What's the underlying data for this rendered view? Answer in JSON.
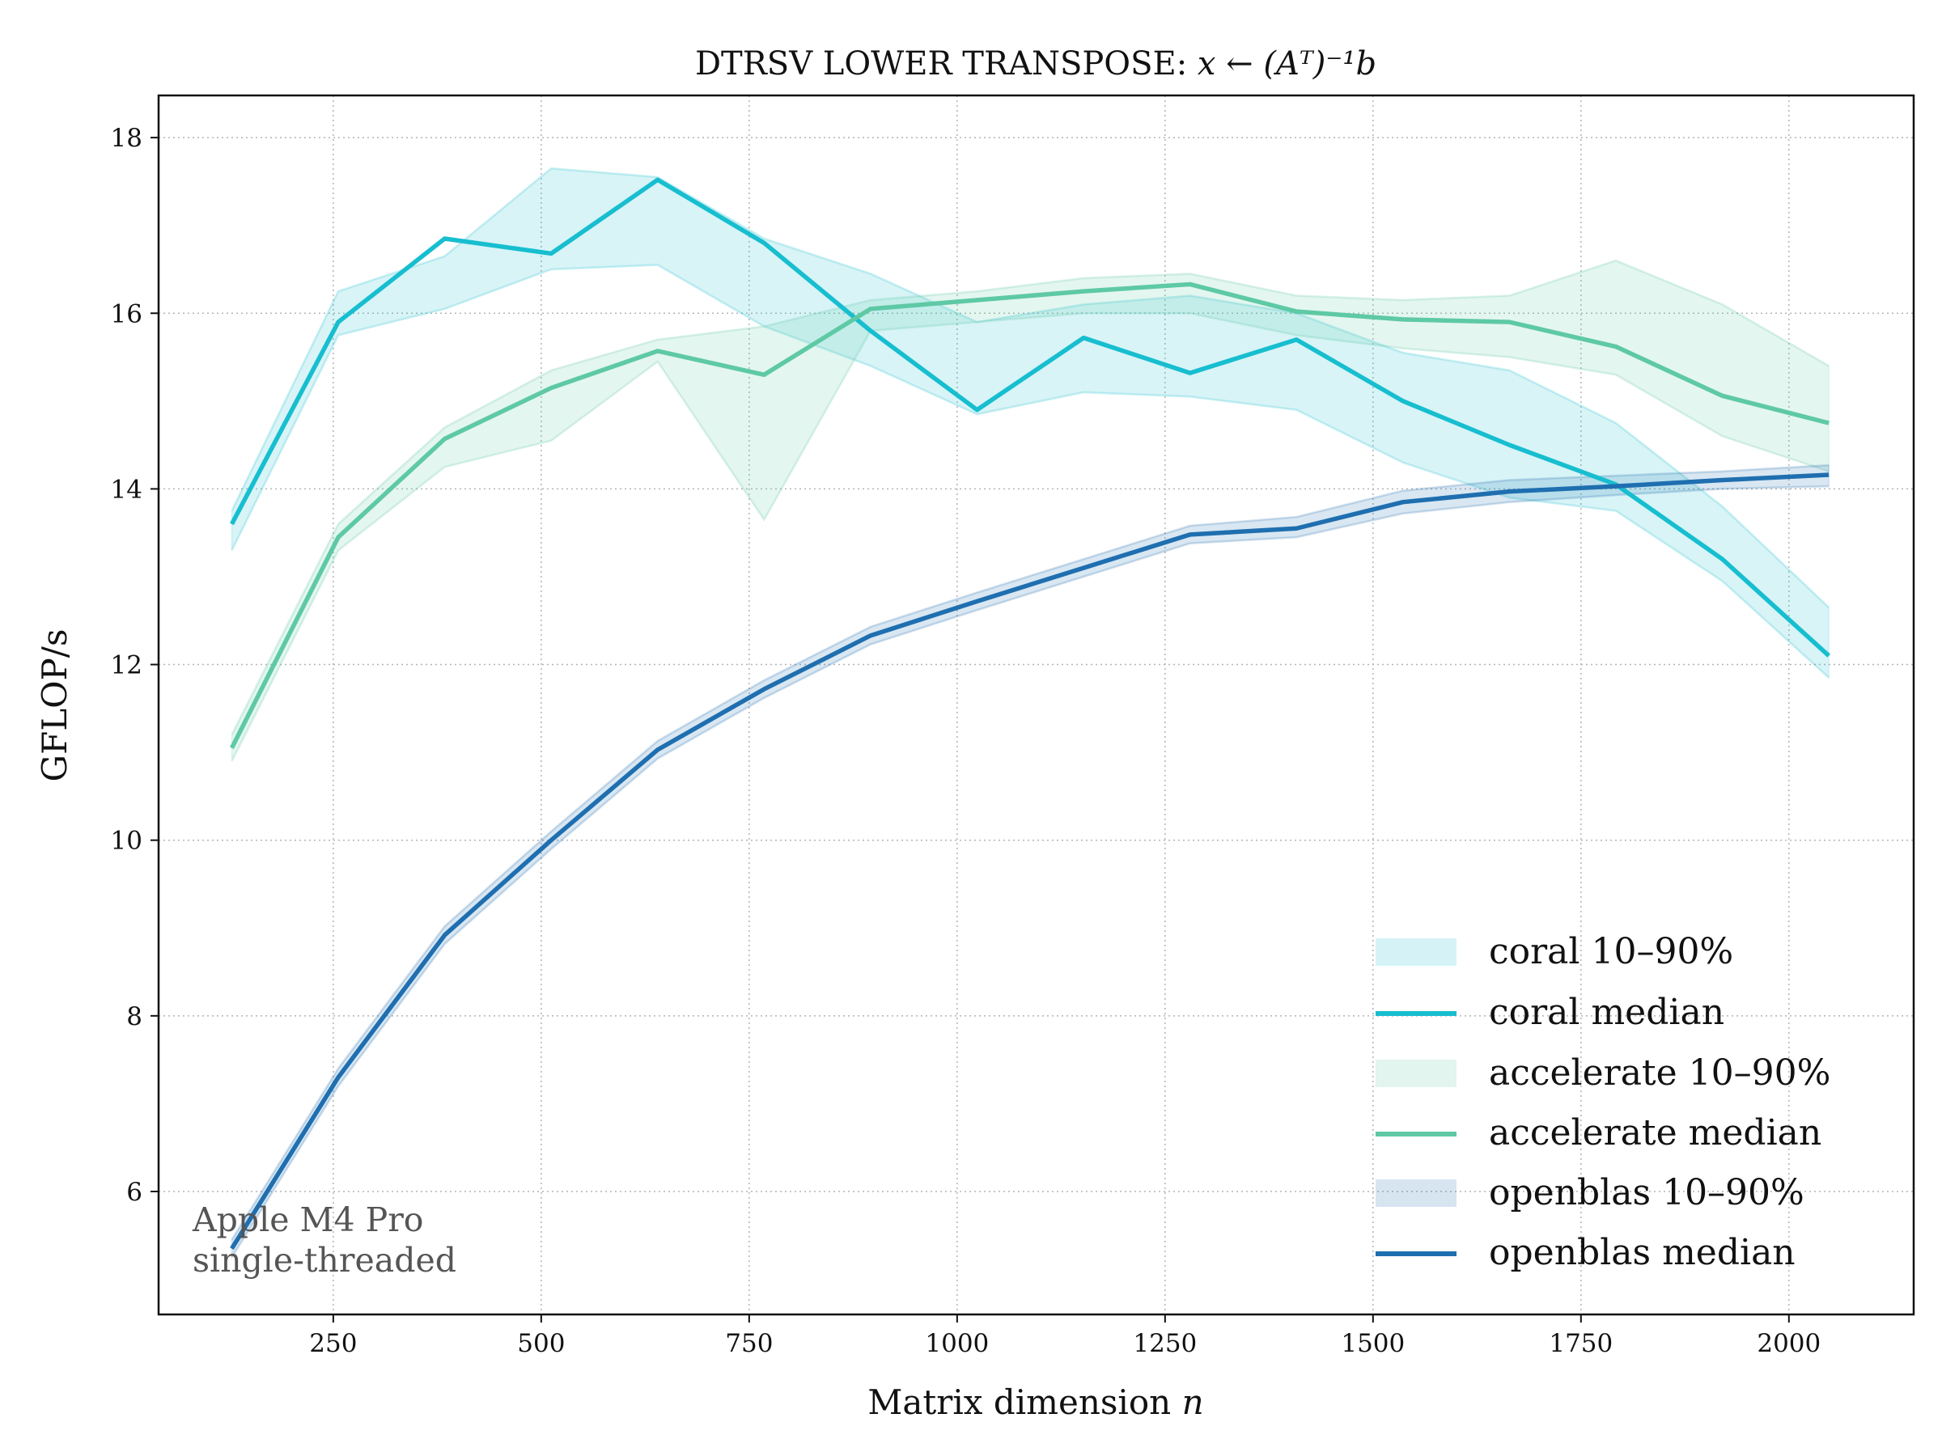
{
  "chart_data": {
    "type": "line",
    "title_prefix": "DTRSV LOWER TRANSPOSE: ",
    "title_math": "x ← (Aᵀ)⁻¹b",
    "xlabel_prefix": "Matrix dimension ",
    "xlabel_math": "n",
    "ylabel": "GFLOP/s",
    "xlim": [
      40,
      2150
    ],
    "ylim": [
      4.6,
      18.48
    ],
    "xticks": [
      250,
      500,
      750,
      1000,
      1250,
      1500,
      1750,
      2000
    ],
    "yticks": [
      6,
      8,
      10,
      12,
      14,
      16,
      18
    ],
    "grid": true,
    "legend_position": "lower-right",
    "annotation": [
      "Apple M4 Pro",
      "single-threaded"
    ],
    "x": [
      128,
      256,
      384,
      512,
      640,
      768,
      896,
      1024,
      1152,
      1280,
      1408,
      1536,
      1664,
      1792,
      1920,
      2048
    ],
    "series": [
      {
        "name": "coral",
        "color": "#17becf",
        "median_label": "coral median",
        "band_label": "coral 10–90%",
        "median": [
          13.6,
          15.9,
          16.85,
          16.68,
          17.52,
          16.8,
          15.8,
          14.9,
          15.72,
          15.32,
          15.7,
          15.0,
          14.5,
          14.05,
          13.2,
          12.1
        ],
        "p10": [
          13.3,
          15.75,
          16.05,
          16.5,
          16.55,
          15.85,
          15.4,
          14.85,
          15.1,
          15.05,
          14.9,
          14.3,
          13.9,
          13.75,
          12.95,
          11.85
        ],
        "p90": [
          13.75,
          16.25,
          16.65,
          17.65,
          17.55,
          16.85,
          16.45,
          15.9,
          16.1,
          16.2,
          16.0,
          15.55,
          15.35,
          14.75,
          13.8,
          12.65
        ]
      },
      {
        "name": "accelerate",
        "color": "#5ec9a5",
        "median_label": "accelerate median",
        "band_label": "accelerate 10–90%",
        "median": [
          11.05,
          13.45,
          14.57,
          15.15,
          15.57,
          15.3,
          16.05,
          16.15,
          16.25,
          16.33,
          16.02,
          15.93,
          15.9,
          15.62,
          15.06,
          14.75
        ],
        "p10": [
          10.9,
          13.3,
          14.25,
          14.55,
          15.45,
          13.65,
          15.8,
          15.9,
          16.0,
          16.0,
          15.75,
          15.6,
          15.5,
          15.3,
          14.6,
          14.2
        ],
        "p90": [
          11.2,
          13.6,
          14.7,
          15.35,
          15.7,
          15.85,
          16.15,
          16.25,
          16.4,
          16.45,
          16.2,
          16.15,
          16.2,
          16.6,
          16.1,
          15.4
        ]
      },
      {
        "name": "openblas",
        "color": "#1f6fb0",
        "median_label": "openblas median",
        "band_label": "openblas 10–90%",
        "median": [
          5.35,
          7.3,
          8.92,
          10.0,
          11.03,
          11.72,
          12.33,
          12.72,
          13.1,
          13.48,
          13.55,
          13.85,
          13.97,
          14.03,
          14.1,
          14.16
        ],
        "p10": [
          5.25,
          7.2,
          8.82,
          9.9,
          10.93,
          11.62,
          12.23,
          12.62,
          13.0,
          13.38,
          13.45,
          13.72,
          13.85,
          13.93,
          14.0,
          14.03
        ],
        "p90": [
          5.45,
          7.4,
          9.02,
          10.1,
          11.13,
          11.82,
          12.43,
          12.82,
          13.2,
          13.58,
          13.68,
          13.98,
          14.1,
          14.15,
          14.2,
          14.27
        ]
      }
    ]
  }
}
